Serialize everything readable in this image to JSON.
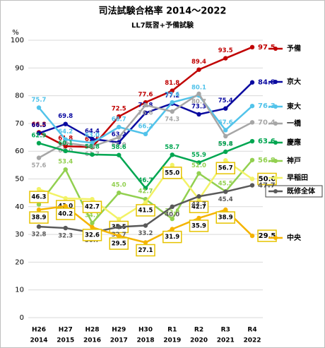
{
  "chart_data": {
    "type": "line",
    "title": "司法試験合格率 2014～2022",
    "subtitle": "LL7既習+予備試験",
    "y_label": "%",
    "categories": [
      "H26",
      "H27",
      "H28",
      "H29",
      "H30",
      "R1",
      "R2",
      "R3",
      "R4"
    ],
    "category_years": [
      "2014",
      "2015",
      "2016",
      "2017",
      "2018",
      "2019",
      "2020",
      "2021",
      "2022"
    ],
    "ylim": [
      0,
      100
    ],
    "yticks": [
      0,
      10,
      20,
      30,
      40,
      50,
      60,
      70,
      80,
      90,
      100
    ],
    "grid": true,
    "legend": "right",
    "series": [
      {
        "name": "予備",
        "color": "#c00000",
        "values": [
          66.8,
          61.8,
          61.5,
          72.5,
          77.6,
          81.8,
          89.4,
          93.5,
          97.5
        ],
        "value_labels": [
          "66.8",
          "61.8",
          "61.5",
          "72.5",
          "77.6",
          "81.8",
          "89.4",
          "93.5",
          "97.5"
        ]
      },
      {
        "name": "京大",
        "color": "#0a0aa0",
        "values": [
          66.5,
          69.8,
          64.4,
          63.2,
          73.8,
          77.2,
          73.3,
          75.4,
          84.8
        ],
        "value_labels": [
          "66.5",
          "69.8",
          "64.4",
          "63.2",
          "73.8",
          "77.2",
          "73.3",
          "75.4",
          "84.8"
        ]
      },
      {
        "name": "東大",
        "color": "#52c3ea",
        "values": [
          75.7,
          64.2,
          63.0,
          68.7,
          66.2,
          77.6,
          80.1,
          67.6,
          76.3
        ],
        "value_labels": [
          "75.7",
          "64.2",
          "63.0",
          "68.7",
          "66.2",
          "77.6",
          "80.1",
          "67.6",
          "76.3"
        ]
      },
      {
        "name": "一橋",
        "color": "#a6a6a6",
        "values": [
          57.6,
          63.0,
          61.7,
          65.0,
          76.6,
          74.3,
          80.7,
          65.4,
          70.4
        ],
        "value_labels": [
          "57.6",
          "63.0",
          "61.7",
          "65.0",
          "76.6",
          "74.3",
          "80.7",
          "65.4",
          "70.4"
        ]
      },
      {
        "name": "慶應",
        "color": "#00a651",
        "values": [
          62.9,
          60.1,
          58.8,
          58.6,
          46.7,
          58.7,
          55.9,
          59.8,
          63.6
        ],
        "value_labels": [
          "62.9",
          "60.1",
          "58.8",
          "58.6",
          "46.7",
          "58.7",
          "55.9",
          "59.8",
          "63.6"
        ]
      },
      {
        "name": "神戸",
        "color": "#92d050",
        "values": [
          40.8,
          53.4,
          34.1,
          45.0,
          42.7,
          35.6,
          52.0,
          45.5,
          56.8
        ],
        "value_labels": [
          "40.8",
          "53.4",
          "34.1",
          "45.0",
          "42.7",
          "35.6",
          "52.0",
          "45.5",
          "56.8"
        ]
      },
      {
        "name": "早稲田",
        "color": "#f2f266",
        "label_box": true,
        "values": [
          46.3,
          43.0,
          42.7,
          35.5,
          41.5,
          55.0,
          42.7,
          56.7,
          50.0
        ],
        "value_labels": [
          "46.3",
          "43.0",
          "42.7",
          "35.5",
          "41.5",
          "55.0",
          "42.7",
          "56.7",
          "50.0"
        ]
      },
      {
        "name": "既修全体",
        "color": "#595959",
        "legend_box": true,
        "values": [
          32.8,
          32.3,
          30.7,
          32.7,
          33.2,
          40.0,
          43.7,
          45.4,
          47.7
        ],
        "value_labels": [
          "32.8",
          "32.3",
          "30.7",
          "32.7",
          "33.2",
          "40.0",
          "43.7",
          "45.4",
          "47.7"
        ]
      },
      {
        "name": "中央",
        "color": "#f5b400",
        "label_box": true,
        "values": [
          38.9,
          40.2,
          32.6,
          29.5,
          27.1,
          31.9,
          35.9,
          38.9,
          29.5
        ],
        "value_labels": [
          "38.9",
          "40.2",
          "32.6",
          "29.5",
          "27.1",
          "31.9",
          "35.9",
          "38.9",
          "29.5"
        ]
      }
    ]
  }
}
